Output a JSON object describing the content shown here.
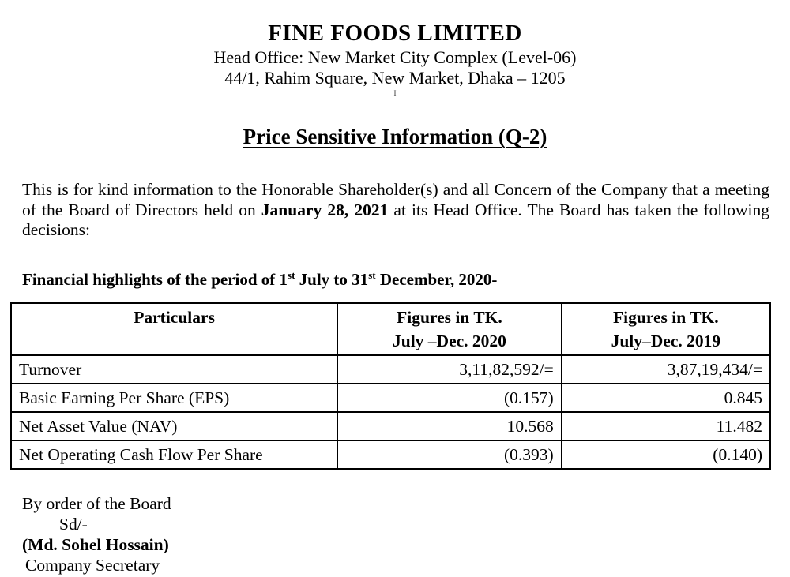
{
  "header": {
    "company_name": "FINE FOODS LIMITED",
    "address_line1": "Head Office: New Market City Complex (Level-06)",
    "address_line2": "44/1, Rahim Square, New Market, Dhaka – 1205",
    "artifact_mark": "I"
  },
  "title": "Price Sensitive Information (Q-2)",
  "body": {
    "intro_before_date": "This is for kind information to the Honorable Shareholder(s) and all Concern of the Company that a meeting of the Board of Directors held on ",
    "meeting_date": "January 28, 2021",
    "intro_after_date": " at its Head Office. The Board has taken the following decisions:"
  },
  "highlights_heading": {
    "prefix": "Financial highlights of the period of 1",
    "sup1": "st",
    "mid": " July to 31",
    "sup2": "st",
    "suffix": " December, 2020-"
  },
  "table": {
    "headers": {
      "particulars": "Particulars",
      "col2020_line1": "Figures in TK.",
      "col2020_line2": "July –Dec. 2020",
      "col2019_line1": "Figures in TK.",
      "col2019_line2": "July–Dec. 2019"
    },
    "rows": [
      {
        "particular": "Turnover",
        "fy2020": "3,11,82,592/=",
        "fy2019": "3,87,19,434/="
      },
      {
        "particular": "Basic Earning Per Share (EPS)",
        "fy2020": "(0.157)",
        "fy2019": "0.845"
      },
      {
        "particular": "Net Asset Value (NAV)",
        "fy2020": "10.568",
        "fy2019": "11.482"
      },
      {
        "particular": "Net Operating Cash Flow Per Share",
        "fy2020": "(0.393)",
        "fy2019": "(0.140)"
      }
    ]
  },
  "signature": {
    "by_order": "By order of the Board",
    "sd": "Sd/-",
    "name": "(Md. Sohel Hossain)",
    "designation": "Company Secretary"
  }
}
